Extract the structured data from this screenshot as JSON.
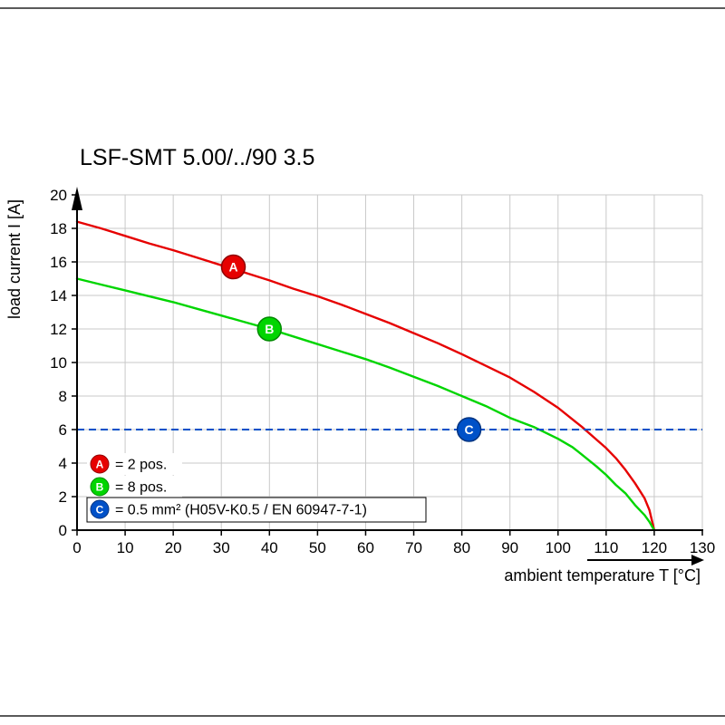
{
  "page": {
    "background": "#ffffff",
    "rule_color": "#5a5a5a"
  },
  "chart_data": {
    "type": "line",
    "title": "LSF-SMT 5.00/../90 3.5",
    "xlabel": "ambient temperature T [°C]",
    "ylabel": "load current I [A]",
    "xlim": [
      0,
      130
    ],
    "ylim": [
      0,
      20
    ],
    "xticks": [
      0,
      10,
      20,
      30,
      40,
      50,
      60,
      70,
      80,
      90,
      100,
      110,
      120,
      130
    ],
    "yticks": [
      0,
      2,
      4,
      6,
      8,
      10,
      12,
      14,
      16,
      18,
      20
    ],
    "grid": true,
    "grid_color": "#c9c9c9",
    "axis_color": "#000000",
    "legend_position": "lower-left",
    "series": [
      {
        "name": "A",
        "legend_label": "= 2 pos.",
        "color": "#e60000",
        "edge": "#8f0000",
        "style": "solid",
        "marker_at": [
          32.5,
          15.7
        ],
        "points": [
          [
            0,
            18.4
          ],
          [
            5,
            18.0
          ],
          [
            10,
            17.55
          ],
          [
            15,
            17.1
          ],
          [
            20,
            16.7
          ],
          [
            25,
            16.25
          ],
          [
            30,
            15.8
          ],
          [
            35,
            15.35
          ],
          [
            40,
            14.9
          ],
          [
            45,
            14.4
          ],
          [
            50,
            13.95
          ],
          [
            55,
            13.45
          ],
          [
            60,
            12.9
          ],
          [
            65,
            12.35
          ],
          [
            70,
            11.75
          ],
          [
            75,
            11.15
          ],
          [
            80,
            10.5
          ],
          [
            85,
            9.8
          ],
          [
            90,
            9.1
          ],
          [
            95,
            8.25
          ],
          [
            100,
            7.3
          ],
          [
            105,
            6.15
          ],
          [
            108,
            5.4
          ],
          [
            110,
            4.9
          ],
          [
            112,
            4.3
          ],
          [
            114,
            3.6
          ],
          [
            116,
            2.8
          ],
          [
            118,
            1.9
          ],
          [
            119,
            1.2
          ],
          [
            120,
            0
          ]
        ]
      },
      {
        "name": "B",
        "legend_label": "= 8 pos.",
        "color": "#00d500",
        "edge": "#008a00",
        "style": "solid",
        "marker_at": [
          40,
          12.0
        ],
        "points": [
          [
            0,
            15.0
          ],
          [
            5,
            14.65
          ],
          [
            10,
            14.3
          ],
          [
            15,
            13.95
          ],
          [
            20,
            13.6
          ],
          [
            25,
            13.2
          ],
          [
            30,
            12.8
          ],
          [
            35,
            12.4
          ],
          [
            40,
            12.0
          ],
          [
            45,
            11.55
          ],
          [
            50,
            11.1
          ],
          [
            55,
            10.65
          ],
          [
            60,
            10.2
          ],
          [
            65,
            9.7
          ],
          [
            70,
            9.15
          ],
          [
            75,
            8.6
          ],
          [
            80,
            8.0
          ],
          [
            85,
            7.4
          ],
          [
            90,
            6.7
          ],
          [
            95,
            6.15
          ],
          [
            100,
            5.45
          ],
          [
            103,
            4.95
          ],
          [
            105,
            4.5
          ],
          [
            108,
            3.8
          ],
          [
            110,
            3.3
          ],
          [
            112,
            2.7
          ],
          [
            114,
            2.2
          ],
          [
            116,
            1.5
          ],
          [
            118,
            0.9
          ],
          [
            119,
            0.5
          ],
          [
            120,
            0
          ]
        ]
      },
      {
        "name": "C",
        "legend_label": "= 0.5 mm² (H05V-K0.5 / EN 60947-7-1)",
        "color": "#0051c8",
        "edge": "#003380",
        "style": "dashed-hline",
        "y": 6,
        "marker_at": [
          81.5,
          6
        ]
      }
    ]
  }
}
